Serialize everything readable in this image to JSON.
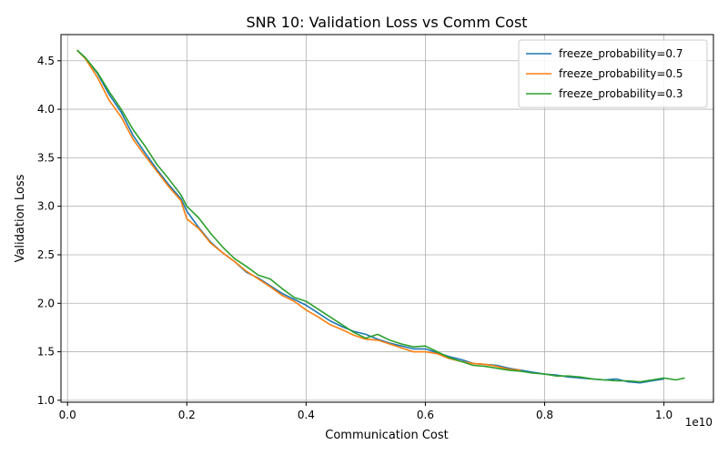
{
  "chart_data": {
    "type": "line",
    "title": "SNR 10: Validation Loss vs Comm Cost",
    "xlabel": "Communication Cost",
    "ylabel": "Validation Loss",
    "x_scale_label": "1e10",
    "xlim": [
      -0.011,
      1.083
    ],
    "ylim": [
      0.98,
      4.77
    ],
    "x_ticks": [
      0.0,
      0.2,
      0.4,
      0.6,
      0.8,
      1.0
    ],
    "x_tick_labels": [
      "0.0",
      "0.2",
      "0.4",
      "0.6",
      "0.8",
      "1.0"
    ],
    "y_ticks": [
      1.0,
      1.5,
      2.0,
      2.5,
      3.0,
      3.5,
      4.0,
      4.5
    ],
    "y_tick_labels": [
      "1.0",
      "1.5",
      "2.0",
      "2.5",
      "3.0",
      "3.5",
      "4.0",
      "4.5"
    ],
    "grid": true,
    "legend_position": "top-right",
    "series": [
      {
        "name": "freeze_probability=0.7",
        "color": "#1f77b4",
        "x": [
          0.016,
          0.03,
          0.05,
          0.07,
          0.09,
          0.11,
          0.13,
          0.15,
          0.17,
          0.19,
          0.2,
          0.22,
          0.24,
          0.26,
          0.28,
          0.3,
          0.32,
          0.34,
          0.36,
          0.38,
          0.4,
          0.42,
          0.44,
          0.46,
          0.48,
          0.5,
          0.52,
          0.54,
          0.56,
          0.58,
          0.6,
          0.62,
          0.64,
          0.66,
          0.68,
          0.7,
          0.72,
          0.74,
          0.76,
          0.78,
          0.8,
          0.82,
          0.84,
          0.86,
          0.88,
          0.9,
          0.92,
          0.94,
          0.96,
          0.98,
          1.0
        ],
        "y": [
          4.61,
          4.53,
          4.37,
          4.15,
          3.97,
          3.73,
          3.55,
          3.38,
          3.22,
          3.08,
          2.95,
          2.78,
          2.63,
          2.52,
          2.43,
          2.32,
          2.26,
          2.18,
          2.1,
          2.04,
          1.98,
          1.9,
          1.82,
          1.76,
          1.71,
          1.68,
          1.63,
          1.59,
          1.56,
          1.53,
          1.53,
          1.49,
          1.45,
          1.42,
          1.38,
          1.37,
          1.36,
          1.33,
          1.31,
          1.29,
          1.27,
          1.26,
          1.24,
          1.23,
          1.22,
          1.21,
          1.22,
          1.19,
          1.18,
          1.2,
          1.22
        ]
      },
      {
        "name": "freeze_probability=0.5",
        "color": "#ff7f0e",
        "x": [
          0.016,
          0.03,
          0.05,
          0.07,
          0.09,
          0.11,
          0.13,
          0.15,
          0.17,
          0.19,
          0.2,
          0.22,
          0.24,
          0.26,
          0.28,
          0.3,
          0.32,
          0.34,
          0.36,
          0.38,
          0.4,
          0.42,
          0.44,
          0.46,
          0.48,
          0.5,
          0.52,
          0.54,
          0.56,
          0.58,
          0.6,
          0.62,
          0.64,
          0.66,
          0.68,
          0.7,
          0.72,
          0.74,
          0.76
        ],
        "y": [
          4.61,
          4.52,
          4.33,
          4.09,
          3.92,
          3.69,
          3.52,
          3.36,
          3.2,
          3.06,
          2.87,
          2.77,
          2.62,
          2.52,
          2.43,
          2.33,
          2.25,
          2.17,
          2.08,
          2.02,
          1.93,
          1.86,
          1.78,
          1.73,
          1.67,
          1.63,
          1.62,
          1.58,
          1.54,
          1.5,
          1.5,
          1.48,
          1.43,
          1.4,
          1.38,
          1.37,
          1.35,
          1.32,
          1.31
        ]
      },
      {
        "name": "freeze_probability=0.3",
        "color": "#2ca02c",
        "x": [
          0.016,
          0.03,
          0.05,
          0.07,
          0.09,
          0.11,
          0.13,
          0.15,
          0.17,
          0.19,
          0.2,
          0.22,
          0.24,
          0.26,
          0.28,
          0.3,
          0.32,
          0.34,
          0.36,
          0.38,
          0.4,
          0.42,
          0.44,
          0.46,
          0.48,
          0.5,
          0.52,
          0.54,
          0.56,
          0.58,
          0.6,
          0.62,
          0.64,
          0.66,
          0.68,
          0.7,
          0.72,
          0.74,
          0.76,
          0.78,
          0.8,
          0.82,
          0.84,
          0.86,
          0.88,
          0.9,
          0.92,
          0.94,
          0.96,
          0.98,
          1.0,
          1.02,
          1.035
        ],
        "y": [
          4.61,
          4.53,
          4.38,
          4.18,
          4.0,
          3.79,
          3.62,
          3.43,
          3.28,
          3.12,
          3.0,
          2.88,
          2.72,
          2.58,
          2.46,
          2.38,
          2.29,
          2.25,
          2.15,
          2.06,
          2.02,
          1.94,
          1.86,
          1.78,
          1.7,
          1.64,
          1.68,
          1.62,
          1.58,
          1.55,
          1.56,
          1.5,
          1.44,
          1.4,
          1.36,
          1.35,
          1.33,
          1.31,
          1.3,
          1.28,
          1.27,
          1.25,
          1.25,
          1.24,
          1.22,
          1.21,
          1.2,
          1.2,
          1.19,
          1.21,
          1.23,
          1.21,
          1.23
        ]
      }
    ]
  }
}
